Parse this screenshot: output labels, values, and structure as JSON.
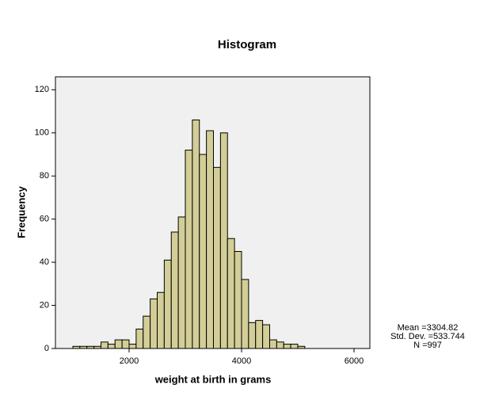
{
  "chart_data": {
    "type": "histogram",
    "title": "Histogram",
    "x_label": "weight at birth in grams",
    "y_label": "Frequency",
    "bins": [
      1000,
      1125,
      1250,
      1375,
      1500,
      1625,
      1750,
      1875,
      2000,
      2125,
      2250,
      2375,
      2500,
      2625,
      2750,
      2875,
      3000,
      3125,
      3250,
      3375,
      3500,
      3625,
      3750,
      3875,
      4000,
      4125,
      4250,
      4375,
      4500,
      4625,
      4750,
      4875,
      5000,
      5125
    ],
    "values": [
      1,
      1,
      1,
      1,
      3,
      2,
      4,
      4,
      2,
      9,
      15,
      23,
      26,
      41,
      54,
      61,
      92,
      106,
      90,
      101,
      84,
      100,
      51,
      45,
      32,
      12,
      13,
      11,
      4,
      3,
      2,
      2,
      1
    ],
    "color": "#d3ce97",
    "xlim": [
      690,
      6282
    ],
    "xticks": [
      2000,
      4000,
      6000
    ],
    "ylim": [
      0,
      126
    ],
    "yticks": [
      0,
      20,
      40,
      60,
      80,
      100,
      120
    ],
    "stats": [
      "Mean =3304.82",
      "Std. Dev. =533.744",
      "N =997"
    ]
  }
}
